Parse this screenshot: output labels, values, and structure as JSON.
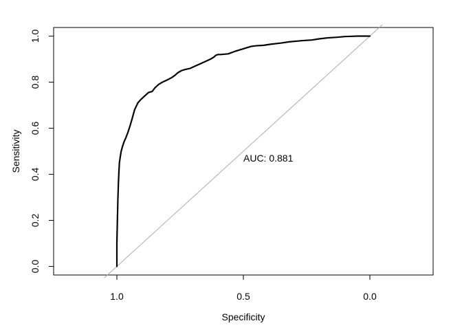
{
  "chart_data": {
    "type": "line",
    "title": "",
    "xlabel": "Specificity",
    "ylabel": "Sensitivity",
    "annotation": "AUC: 0.881",
    "xlim": [
      1.25,
      -0.25
    ],
    "ylim": [
      0,
      1
    ],
    "x_reversed": true,
    "grid": false,
    "legend": "none",
    "x_ticks": [
      {
        "value": 1.0,
        "label": "1.0"
      },
      {
        "value": 0.5,
        "label": "0.5"
      },
      {
        "value": 0.0,
        "label": "0.0"
      }
    ],
    "y_ticks": [
      {
        "value": 0.0,
        "label": "0.0"
      },
      {
        "value": 0.2,
        "label": "0.2"
      },
      {
        "value": 0.4,
        "label": "0.4"
      },
      {
        "value": 0.6,
        "label": "0.6"
      },
      {
        "value": 0.8,
        "label": "0.8"
      },
      {
        "value": 1.0,
        "label": "1.0"
      }
    ],
    "reference_line": {
      "from": [
        1,
        0
      ],
      "to": [
        0,
        1
      ],
      "color": "#aaaaaa"
    },
    "series": [
      {
        "color": "#000000",
        "x": [
          1.0,
          1.0,
          0.998,
          0.996,
          0.994,
          0.992,
          0.99,
          0.986,
          0.983,
          0.978,
          0.972,
          0.964,
          0.957,
          0.948,
          0.94,
          0.93,
          0.917,
          0.905,
          0.89,
          0.875,
          0.86,
          0.85,
          0.835,
          0.82,
          0.8,
          0.783,
          0.77,
          0.76,
          0.745,
          0.73,
          0.71,
          0.69,
          0.67,
          0.65,
          0.63,
          0.615,
          0.61,
          0.6,
          0.59,
          0.56,
          0.53,
          0.5,
          0.47,
          0.45,
          0.42,
          0.39,
          0.35,
          0.32,
          0.27,
          0.23,
          0.2,
          0.17,
          0.13,
          0.1,
          0.07,
          0.05,
          0.03,
          0.01,
          0.0
        ],
        "y": [
          0.0,
          0.1,
          0.2,
          0.29,
          0.36,
          0.41,
          0.45,
          0.48,
          0.5,
          0.52,
          0.54,
          0.56,
          0.58,
          0.61,
          0.64,
          0.68,
          0.71,
          0.725,
          0.74,
          0.755,
          0.76,
          0.775,
          0.79,
          0.8,
          0.81,
          0.82,
          0.83,
          0.84,
          0.85,
          0.855,
          0.86,
          0.87,
          0.88,
          0.89,
          0.9,
          0.91,
          0.916,
          0.92,
          0.92,
          0.923,
          0.935,
          0.945,
          0.955,
          0.958,
          0.96,
          0.965,
          0.97,
          0.975,
          0.98,
          0.983,
          0.988,
          0.992,
          0.995,
          0.998,
          0.999,
          1.0,
          1.0,
          1.0,
          1.0
        ]
      }
    ]
  }
}
